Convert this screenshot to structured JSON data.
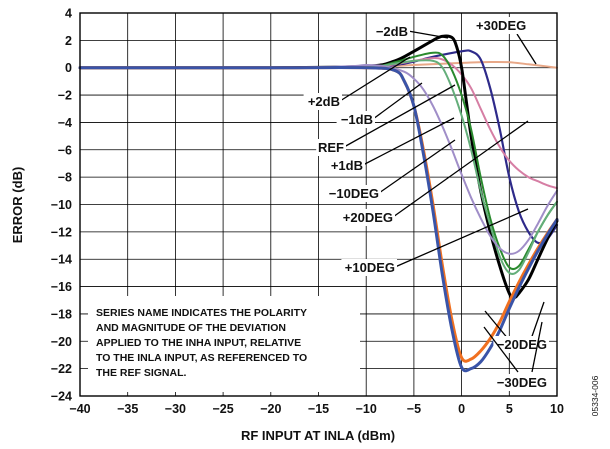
{
  "figure_id": "05334-006",
  "chart_data": {
    "type": "line",
    "title": "",
    "xlabel": "RF INPUT AT INLA (dBm)",
    "ylabel": "ERROR (dB)",
    "xlim": [
      -40,
      10
    ],
    "ylim": [
      -24,
      4
    ],
    "xticks": [
      -40,
      -35,
      -30,
      -25,
      -20,
      -15,
      -10,
      -5,
      0,
      5,
      10
    ],
    "yticks": [
      4,
      2,
      0,
      -2,
      -4,
      -6,
      -8,
      -10,
      -12,
      -14,
      -16,
      -18,
      -20,
      -22,
      -24
    ],
    "xtick_labels": [
      "−40",
      "−35",
      "−30",
      "−25",
      "−20",
      "−15",
      "−10",
      "−5",
      "0",
      "5",
      "10"
    ],
    "ytick_labels": [
      "4",
      "2",
      "0",
      "−2",
      "−4",
      "−6",
      "−8",
      "−10",
      "−12",
      "−14",
      "−16",
      "−18",
      "−20",
      "−22",
      "−24"
    ],
    "grid": true,
    "note": [
      "SERIES NAME INDICATES THE POLARITY",
      "AND MAGNITUDE OF THE DEVIATION",
      "APPLIED TO THE INHA INPUT, RELATIVE",
      "TO THE INLA INPUT, AS REFERENCED TO",
      "THE REF SIGNAL."
    ],
    "series": [
      {
        "name": "+30DEG",
        "color": "#e8a888",
        "x": [
          -40,
          -30,
          -20,
          -10,
          -5,
          0,
          3,
          5,
          7,
          10
        ],
        "y": [
          0,
          0,
          0,
          0.05,
          0.2,
          0.35,
          0.42,
          0.4,
          0.25,
          0
        ]
      },
      {
        "name": "+20DEG",
        "color": "#2e2a8a",
        "x": [
          -40,
          -20,
          -10,
          -6,
          -3,
          0,
          1,
          2,
          3,
          4,
          5,
          6,
          7,
          8,
          9,
          10
        ],
        "y": [
          0,
          0,
          0.05,
          0.3,
          0.8,
          1.2,
          1.2,
          0.6,
          -1.5,
          -4.5,
          -8,
          -10.5,
          -12,
          -12.8,
          -12.5,
          -11.5
        ]
      },
      {
        "name": "+10DEG",
        "color": "#d67ea4",
        "x": [
          -40,
          -20,
          -10,
          -7,
          -5,
          -3,
          -2,
          -1,
          0,
          1,
          2,
          3,
          4,
          5,
          6,
          7,
          8,
          9,
          10
        ],
        "y": [
          0,
          0,
          0.05,
          0.25,
          0.5,
          0.7,
          0.6,
          0.2,
          -0.5,
          -1.5,
          -3,
          -4.5,
          -5.8,
          -6.8,
          -7.5,
          -8,
          -8.3,
          -8.6,
          -8.8
        ]
      },
      {
        "name": "+2dB",
        "color": "#000000",
        "x": [
          -40,
          -20,
          -10,
          -7,
          -5,
          -3,
          -2,
          -1,
          -0.5,
          0,
          0.5,
          1,
          2,
          3,
          4,
          5,
          5.5,
          6,
          7,
          8,
          9,
          10
        ],
        "y": [
          0,
          0,
          0.1,
          0.5,
          1.2,
          2,
          2.3,
          2.2,
          1.5,
          0,
          -2.5,
          -5,
          -9,
          -12,
          -14.5,
          -16.5,
          -16.8,
          -16.5,
          -15.5,
          -14,
          -12.5,
          -11.2
        ]
      },
      {
        "name": "+1dB",
        "color": "#2a8a2e",
        "x": [
          -40,
          -20,
          -10,
          -7,
          -5,
          -3,
          -2,
          -1,
          0,
          1,
          2,
          3,
          4,
          5,
          6,
          7,
          8,
          9,
          10
        ],
        "y": [
          0,
          0,
          0.05,
          0.4,
          0.8,
          1.1,
          0.9,
          -0.2,
          -2,
          -4.5,
          -8,
          -11,
          -13.2,
          -14.6,
          -14.5,
          -13.3,
          -12,
          -10.8,
          -9.8
        ]
      },
      {
        "name": "REF",
        "color": "#64ae7a",
        "x": [
          -40,
          -20,
          -10,
          -7,
          -5,
          -3,
          -2,
          -1,
          0,
          1,
          2,
          3,
          4,
          5,
          6,
          7,
          8,
          9,
          10
        ],
        "y": [
          0,
          0,
          0.05,
          0.3,
          0.5,
          0.5,
          0,
          -1.5,
          -3.5,
          -6,
          -9,
          -11.5,
          -13.8,
          -15,
          -14.8,
          -13.5,
          -12,
          -10.8,
          -9.8
        ]
      },
      {
        "name": "−10DEG",
        "color": "#a08ec8",
        "x": [
          -40,
          -20,
          -12,
          -10,
          -8,
          -6,
          -5,
          -4,
          -3,
          -2,
          -1,
          0,
          1,
          2,
          3,
          4,
          5,
          6,
          7,
          8,
          9,
          10
        ],
        "y": [
          0,
          0,
          0.1,
          0.2,
          0.1,
          -0.3,
          -0.8,
          -1.6,
          -2.8,
          -4.3,
          -6,
          -7.8,
          -9.5,
          -11,
          -12.3,
          -13.2,
          -13.6,
          -13.4,
          -12.6,
          -11.4,
          -10.1,
          -9
        ]
      },
      {
        "name": "−20DEG",
        "color": "#f07020",
        "x": [
          -40,
          -20,
          -10,
          -7,
          -6,
          -5,
          -4,
          -3,
          -2,
          -1,
          0,
          1,
          2,
          3,
          4,
          5,
          6,
          7,
          8,
          9,
          10
        ],
        "y": [
          0,
          0,
          0,
          -0.2,
          -1,
          -2.8,
          -6,
          -10,
          -14.5,
          -18.5,
          -21.2,
          -21.3,
          -20.7,
          -19.8,
          -18.6,
          -17.1,
          -15.7,
          -14.4,
          -13.2,
          -12.1,
          -11.1
        ]
      },
      {
        "name": "−30DEG",
        "color": "#3a54a8",
        "x": [
          -40,
          -20,
          -10,
          -7,
          -6,
          -5,
          -4,
          -3,
          -2,
          -1,
          0,
          1,
          2,
          3,
          4,
          5,
          6,
          7,
          8,
          9,
          10
        ],
        "y": [
          0,
          0,
          0,
          -0.2,
          -1,
          -2.8,
          -6.3,
          -10.5,
          -15.2,
          -19.2,
          -21.9,
          -22,
          -21.5,
          -20.5,
          -19.2,
          -17.6,
          -16.1,
          -14.7,
          -13.4,
          -12.2,
          -11.1
        ]
      }
    ],
    "annotations": [
      {
        "text": "−2dB",
        "series": "−2dB"
      },
      {
        "text": "+30DEG",
        "series": "+30DEG"
      },
      {
        "text": "+2dB",
        "series": "+2dB"
      },
      {
        "text": "−1dB",
        "series": "−1dB"
      },
      {
        "text": "REF",
        "series": "REF"
      },
      {
        "text": "+1dB",
        "series": "+1dB"
      },
      {
        "text": "−10DEG",
        "series": "−10DEG"
      },
      {
        "text": "+20DEG",
        "series": "+20DEG"
      },
      {
        "text": "+10DEG",
        "series": "+10DEG"
      },
      {
        "text": "−20DEG",
        "series": "−20DEG"
      },
      {
        "text": "−30DEG",
        "series": "−30DEG"
      }
    ]
  }
}
